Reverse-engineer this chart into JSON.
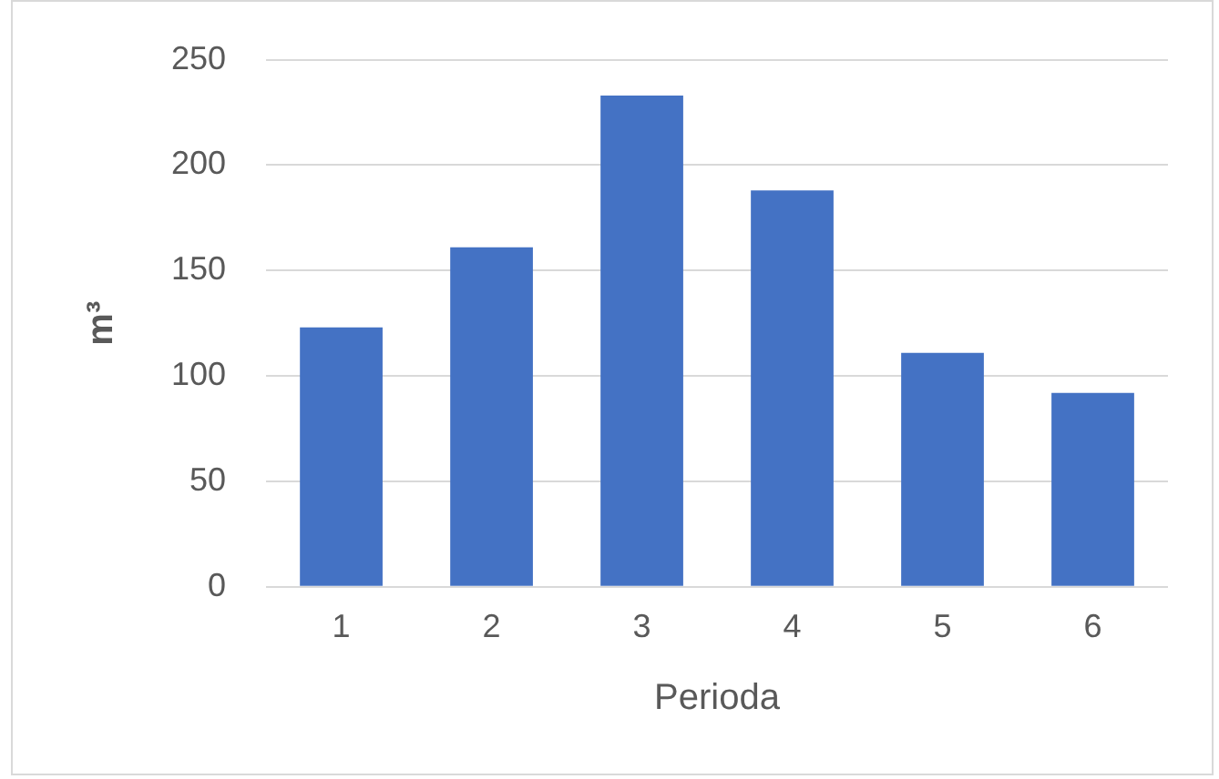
{
  "chart_data": {
    "type": "bar",
    "xlabel": "Perioda",
    "ylabel": "m³",
    "categories": [
      "1",
      "2",
      "3",
      "4",
      "5",
      "6"
    ],
    "values": [
      123,
      161,
      233,
      188,
      111,
      92
    ],
    "color": "#4472c4",
    "ylim": [
      0,
      250
    ],
    "yticks": [
      0,
      50,
      100,
      150,
      200,
      250
    ],
    "grid": "y",
    "legend": false
  }
}
